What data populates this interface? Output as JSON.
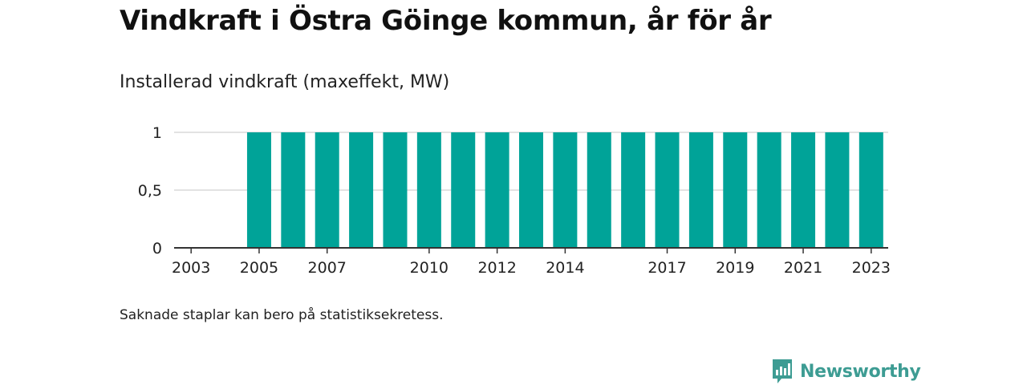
{
  "header": {
    "title": "Vindkraft i Östra Göinge kommun, år för år",
    "subtitle": "Installerad vindkraft (maxeffekt, MW)"
  },
  "footnote": "Saknade staplar kan bero på statistiksekretess.",
  "brand": {
    "name": "Newsworthy",
    "icon": "newsworthy-logo-icon",
    "color": "#3d9c93"
  },
  "chart_data": {
    "type": "bar",
    "categories": [
      "2003",
      "2004",
      "2005",
      "2006",
      "2007",
      "2008",
      "2009",
      "2010",
      "2011",
      "2012",
      "2013",
      "2014",
      "2015",
      "2016",
      "2017",
      "2018",
      "2019",
      "2020",
      "2021",
      "2022",
      "2023"
    ],
    "values": [
      0,
      0,
      1,
      1,
      1,
      1,
      1,
      1,
      1,
      1,
      1,
      1,
      1,
      1,
      1,
      1,
      1,
      1,
      1,
      1,
      1
    ],
    "x_tick_labels": [
      "2003",
      "2005",
      "2007",
      "2010",
      "2012",
      "2014",
      "2017",
      "2019",
      "2021",
      "2023"
    ],
    "y_ticks": [
      0,
      0.5,
      1
    ],
    "y_tick_labels": [
      "0",
      "0,5",
      "1"
    ],
    "ylim": [
      0,
      1
    ],
    "xlabel": "",
    "ylabel": "",
    "grid": true,
    "bar_color": "#00a398"
  }
}
